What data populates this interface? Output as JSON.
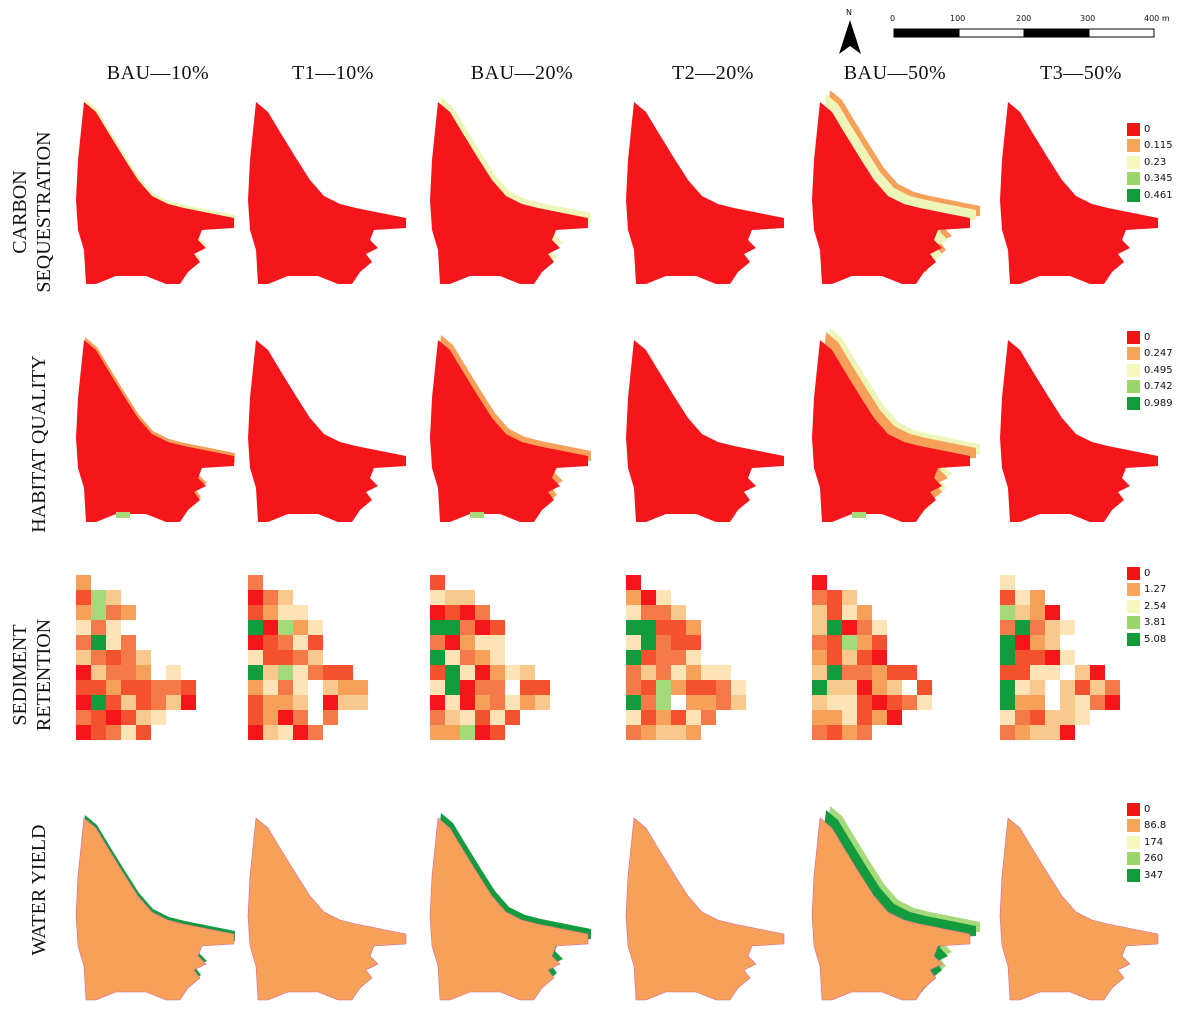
{
  "columns": [
    "BAU—10%",
    "T1—10%",
    "BAU—20%",
    "T2—20%",
    "BAU—50%",
    "T3—50%"
  ],
  "rows": [
    {
      "label_lines": [
        "CARBON",
        "SEQUESTRATION"
      ],
      "legend": [
        "0",
        "0.115",
        "0.23",
        "0.345",
        "0.461"
      ]
    },
    {
      "label_lines": [
        "HABITAT QUALITY"
      ],
      "legend": [
        "0",
        "0.247",
        "0.495",
        "0.742",
        "0.989"
      ]
    },
    {
      "label_lines": [
        "SEDIMENT",
        "RETENTION"
      ],
      "legend": [
        "0",
        "1.27",
        "2.54",
        "3.81",
        "5.08"
      ]
    },
    {
      "label_lines": [
        "WATER YIELD"
      ],
      "legend": [
        "0",
        "86.8",
        "174",
        "260",
        "347"
      ]
    }
  ],
  "legend_colors": [
    "#f01414",
    "#f9a45a",
    "#f6f7bd",
    "#9ad66a",
    "#139a3b"
  ],
  "map_colors": {
    "red": "#f5161b",
    "orange": "#f7a05a",
    "pale": "#eef5b8",
    "green": "#129c3d",
    "lightgreen": "#a6d97a"
  },
  "north_arrow": {
    "letter": "N"
  },
  "scale_bar": {
    "labels": [
      "0",
      "100",
      "200",
      "300",
      "400 m"
    ]
  }
}
